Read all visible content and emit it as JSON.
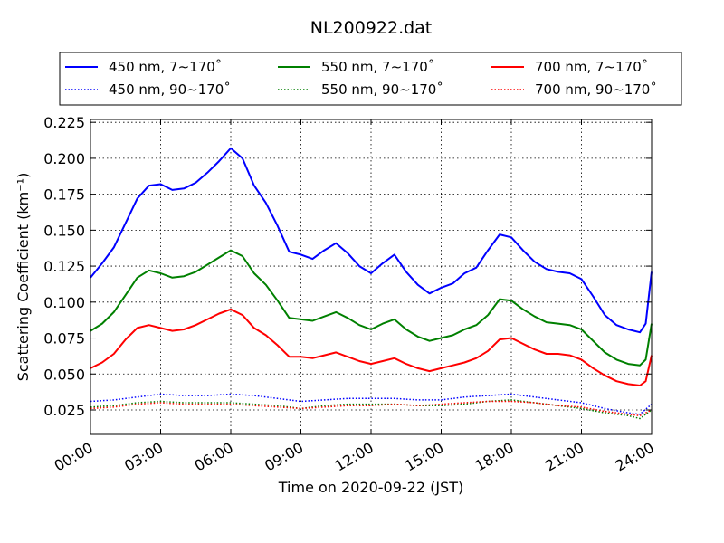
{
  "chart_data": {
    "type": "line",
    "title": "NL200922.dat",
    "xlabel": "Time on 2020-09-22 (JST)",
    "ylabel": "Scattering Coefficient (km⁻¹)",
    "x_unit": "hours",
    "xlim": [
      0,
      24
    ],
    "ylim": [
      0.008,
      0.227
    ],
    "x_ticks": [
      {
        "value": 0,
        "label": "00:00"
      },
      {
        "value": 3,
        "label": "03:00"
      },
      {
        "value": 6,
        "label": "06:00"
      },
      {
        "value": 9,
        "label": "09:00"
      },
      {
        "value": 12,
        "label": "12:00"
      },
      {
        "value": 15,
        "label": "15:00"
      },
      {
        "value": 18,
        "label": "18:00"
      },
      {
        "value": 21,
        "label": "21:00"
      },
      {
        "value": 24,
        "label": "24:00"
      }
    ],
    "y_ticks": [
      {
        "value": 0.025,
        "label": "0.025"
      },
      {
        "value": 0.05,
        "label": "0.050"
      },
      {
        "value": 0.075,
        "label": "0.075"
      },
      {
        "value": 0.1,
        "label": "0.100"
      },
      {
        "value": 0.125,
        "label": "0.125"
      },
      {
        "value": 0.15,
        "label": "0.150"
      },
      {
        "value": 0.175,
        "label": "0.175"
      },
      {
        "value": 0.2,
        "label": "0.200"
      },
      {
        "value": 0.225,
        "label": "0.225"
      }
    ],
    "grid": true,
    "legend_position": "top",
    "series": [
      {
        "name": "450 nm, 7∼170˚",
        "color": "#0000ff",
        "style": "solid",
        "x": [
          0,
          0.5,
          1,
          1.5,
          2,
          2.5,
          3,
          3.5,
          4,
          4.5,
          5,
          5.5,
          6,
          6.5,
          7,
          7.5,
          8,
          8.5,
          9,
          9.5,
          10,
          10.5,
          11,
          11.5,
          12,
          12.5,
          13,
          13.5,
          14,
          14.5,
          15,
          15.5,
          16,
          16.5,
          17,
          17.5,
          18,
          18.5,
          19,
          19.5,
          20,
          20.5,
          21,
          21.5,
          22,
          22.5,
          23,
          23.5,
          23.75,
          24
        ],
        "y": [
          0.117,
          0.127,
          0.138,
          0.155,
          0.172,
          0.181,
          0.182,
          0.178,
          0.179,
          0.183,
          0.19,
          0.198,
          0.207,
          0.2,
          0.181,
          0.169,
          0.153,
          0.135,
          0.133,
          0.13,
          0.136,
          0.141,
          0.134,
          0.125,
          0.12,
          0.127,
          0.133,
          0.121,
          0.112,
          0.106,
          0.11,
          0.113,
          0.12,
          0.124,
          0.136,
          0.147,
          0.145,
          0.136,
          0.128,
          0.123,
          0.121,
          0.12,
          0.116,
          0.104,
          0.091,
          0.084,
          0.081,
          0.079,
          0.085,
          0.121
        ]
      },
      {
        "name": "550 nm, 7∼170˚",
        "color": "#008000",
        "style": "solid",
        "x": [
          0,
          0.5,
          1,
          1.5,
          2,
          2.5,
          3,
          3.5,
          4,
          4.5,
          5,
          5.5,
          6,
          6.5,
          7,
          7.5,
          8,
          8.5,
          9,
          9.5,
          10,
          10.5,
          11,
          11.5,
          12,
          12.5,
          13,
          13.5,
          14,
          14.5,
          15,
          15.5,
          16,
          16.5,
          17,
          17.5,
          18,
          18.5,
          19,
          19.5,
          20,
          20.5,
          21,
          21.5,
          22,
          22.5,
          23,
          23.5,
          23.75,
          24
        ],
        "y": [
          0.08,
          0.085,
          0.093,
          0.105,
          0.117,
          0.122,
          0.12,
          0.117,
          0.118,
          0.121,
          0.126,
          0.131,
          0.136,
          0.132,
          0.12,
          0.112,
          0.101,
          0.089,
          0.088,
          0.087,
          0.09,
          0.093,
          0.089,
          0.084,
          0.081,
          0.085,
          0.088,
          0.081,
          0.076,
          0.073,
          0.075,
          0.077,
          0.081,
          0.084,
          0.091,
          0.102,
          0.101,
          0.095,
          0.09,
          0.086,
          0.085,
          0.084,
          0.081,
          0.073,
          0.065,
          0.06,
          0.057,
          0.056,
          0.06,
          0.085
        ]
      },
      {
        "name": "700 nm, 7∼170˚",
        "color": "#ff0000",
        "style": "solid",
        "x": [
          0,
          0.5,
          1,
          1.5,
          2,
          2.5,
          3,
          3.5,
          4,
          4.5,
          5,
          5.5,
          6,
          6.5,
          7,
          7.5,
          8,
          8.5,
          9,
          9.5,
          10,
          10.5,
          11,
          11.5,
          12,
          12.5,
          13,
          13.5,
          14,
          14.5,
          15,
          15.5,
          16,
          16.5,
          17,
          17.5,
          18,
          18.5,
          19,
          19.5,
          20,
          20.5,
          21,
          21.5,
          22,
          22.5,
          23,
          23.5,
          23.75,
          24
        ],
        "y": [
          0.054,
          0.058,
          0.064,
          0.074,
          0.082,
          0.084,
          0.082,
          0.08,
          0.081,
          0.084,
          0.088,
          0.092,
          0.095,
          0.091,
          0.082,
          0.077,
          0.07,
          0.062,
          0.062,
          0.061,
          0.063,
          0.065,
          0.062,
          0.059,
          0.057,
          0.059,
          0.061,
          0.057,
          0.054,
          0.052,
          0.054,
          0.056,
          0.058,
          0.061,
          0.066,
          0.074,
          0.075,
          0.071,
          0.067,
          0.064,
          0.064,
          0.063,
          0.06,
          0.054,
          0.049,
          0.045,
          0.043,
          0.042,
          0.045,
          0.063
        ]
      },
      {
        "name": "450 nm, 90∼170˚",
        "color": "#0000ff",
        "style": "dotted",
        "x": [
          0,
          1,
          2,
          3,
          4,
          5,
          6,
          7,
          8,
          9,
          10,
          11,
          12,
          13,
          14,
          15,
          16,
          17,
          18,
          19,
          20,
          21,
          22,
          23,
          23.5,
          24
        ],
        "y": [
          0.031,
          0.032,
          0.034,
          0.036,
          0.035,
          0.035,
          0.036,
          0.035,
          0.033,
          0.031,
          0.032,
          0.033,
          0.033,
          0.033,
          0.032,
          0.032,
          0.034,
          0.035,
          0.036,
          0.034,
          0.032,
          0.03,
          0.026,
          0.023,
          0.022,
          0.029
        ]
      },
      {
        "name": "550 nm, 90∼170˚",
        "color": "#008000",
        "style": "dotted",
        "x": [
          0,
          1,
          2,
          3,
          4,
          5,
          6,
          7,
          8,
          9,
          10,
          11,
          12,
          13,
          14,
          15,
          16,
          17,
          18,
          19,
          20,
          21,
          22,
          23,
          23.5,
          24
        ],
        "y": [
          0.027,
          0.028,
          0.03,
          0.031,
          0.03,
          0.03,
          0.03,
          0.029,
          0.028,
          0.026,
          0.028,
          0.029,
          0.029,
          0.029,
          0.028,
          0.028,
          0.029,
          0.031,
          0.032,
          0.03,
          0.028,
          0.026,
          0.023,
          0.021,
          0.019,
          0.025
        ]
      },
      {
        "name": "700 nm, 90∼170˚",
        "color": "#ff0000",
        "style": "dotted",
        "x": [
          0,
          1,
          2,
          3,
          4,
          5,
          6,
          7,
          8,
          9,
          10,
          11,
          12,
          13,
          14,
          15,
          16,
          17,
          18,
          19,
          20,
          21,
          22,
          23,
          23.5,
          24
        ],
        "y": [
          0.026,
          0.027,
          0.029,
          0.03,
          0.029,
          0.029,
          0.029,
          0.028,
          0.027,
          0.026,
          0.027,
          0.028,
          0.028,
          0.029,
          0.028,
          0.029,
          0.03,
          0.031,
          0.031,
          0.03,
          0.028,
          0.027,
          0.024,
          0.022,
          0.021,
          0.025
        ]
      }
    ]
  }
}
